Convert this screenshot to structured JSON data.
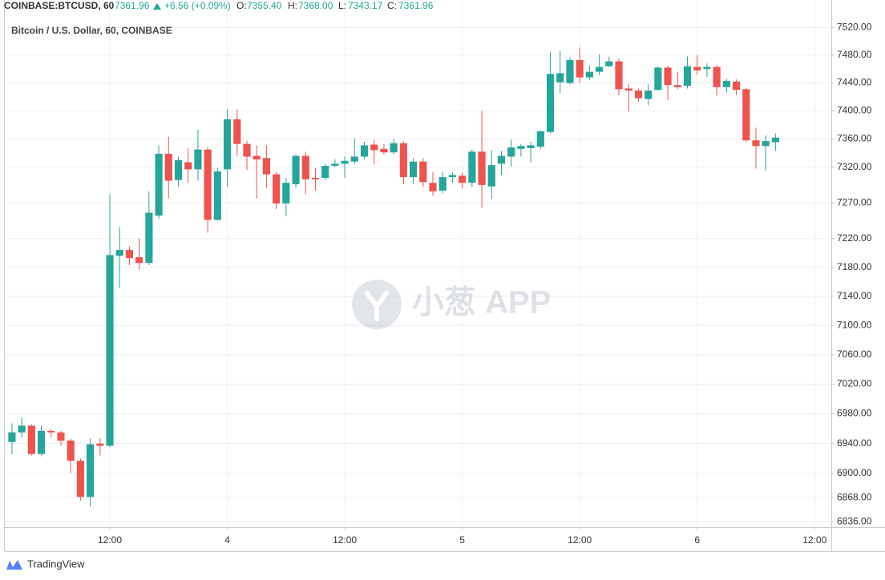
{
  "chart_data": {
    "type": "candlestick",
    "header": {
      "symbol": "COINBASE:BTCUSD, 60",
      "price": "7361.96",
      "change": "+6.56 (+0.09%)",
      "ohlc": [
        {
          "label": "O:",
          "value": "7355.40"
        },
        {
          "label": "H:",
          "value": "7368.00"
        },
        {
          "label": "L:",
          "value": "7343.17"
        },
        {
          "label": "C:",
          "value": "7361.96"
        }
      ]
    },
    "title": "Bitcoin / U.S. Dollar, 60, COINBASE",
    "watermark": "小葱 APP",
    "footer": "TradingView",
    "up_color": "#26a69a",
    "down_color": "#ef5350",
    "log_scale": true,
    "grid": true,
    "xlim": [
      1.27,
      85.7
    ],
    "xticks": [
      {
        "value": 12,
        "label": "12:00"
      },
      {
        "value": 24,
        "label": "4"
      },
      {
        "value": 36,
        "label": "12:00"
      },
      {
        "value": 48,
        "label": "5"
      },
      {
        "value": 60,
        "label": "12:00"
      },
      {
        "value": 72,
        "label": "6"
      },
      {
        "value": 84,
        "label": "12:00"
      }
    ],
    "ylim": [
      6829,
      7560
    ],
    "yticks": [
      {
        "value": 7520,
        "label": "7520.00"
      },
      {
        "value": 7480,
        "label": "7480.00"
      },
      {
        "value": 7440,
        "label": "7440.00"
      },
      {
        "value": 7400,
        "label": "7400.00"
      },
      {
        "value": 7360,
        "label": "7360.00"
      },
      {
        "value": 7320,
        "label": "7320.00"
      },
      {
        "value": 7270,
        "label": "7270.00"
      },
      {
        "value": 7220,
        "label": "7220.00"
      },
      {
        "value": 7180,
        "label": "7180.00"
      },
      {
        "value": 7140,
        "label": "7140.00"
      },
      {
        "value": 7100,
        "label": "7100.00"
      },
      {
        "value": 7060,
        "label": "7060.00"
      },
      {
        "value": 7020,
        "label": "7020.00"
      },
      {
        "value": 6980,
        "label": "6980.00"
      },
      {
        "value": 6940,
        "label": "6940.00"
      },
      {
        "value": 6900,
        "label": "6900.00"
      },
      {
        "value": 6868,
        "label": "6868.00"
      },
      {
        "value": 6836,
        "label": "6836.00"
      }
    ],
    "x": [
      2,
      3,
      4,
      5,
      6,
      7,
      8,
      9,
      10,
      11,
      12,
      13,
      14,
      15,
      16,
      17,
      18,
      19,
      20,
      21,
      22,
      23,
      24,
      25,
      26,
      27,
      28,
      29,
      30,
      31,
      32,
      33,
      34,
      35,
      36,
      37,
      38,
      39,
      40,
      41,
      42,
      43,
      44,
      45,
      46,
      47,
      48,
      49,
      50,
      51,
      52,
      53,
      54,
      55,
      56,
      57,
      58,
      59,
      60,
      61,
      62,
      63,
      64,
      65,
      66,
      67,
      68,
      69,
      70,
      71,
      72,
      73,
      74,
      75,
      76,
      77,
      78,
      79,
      80
    ],
    "open": [
      6942,
      6955,
      6964,
      6926,
      6957,
      6955,
      6944,
      6917,
      6869,
      6940,
      6937,
      7196,
      7204,
      7194,
      7186,
      7252,
      7339,
      7302,
      7327,
      7317,
      7345,
      7246,
      7317,
      7388,
      7353,
      7336,
      7333,
      7310,
      7269,
      7296,
      7336,
      7305,
      7305,
      7322,
      7325,
      7328,
      7335,
      7352,
      7346,
      7341,
      7354,
      7306,
      7328,
      7298,
      7287,
      7306,
      7308,
      7298,
      7342,
      7293,
      7325,
      7335,
      7346,
      7347,
      7349,
      7370,
      7441,
      7440,
      7473,
      7448,
      7456,
      7464,
      7471,
      7432,
      7429,
      7417,
      7430,
      7462,
      7437,
      7436,
      7463,
      7460,
      7463,
      7434,
      7442,
      7431,
      7358,
      7350,
      7355.4
    ],
    "high": [
      6967,
      6975,
      6966,
      6964,
      6959,
      6957,
      6946,
      6920,
      6947,
      6947,
      7282,
      7236,
      7209,
      7220,
      7286,
      7351,
      7363,
      7335,
      7347,
      7373,
      7348,
      7319,
      7402,
      7402,
      7357,
      7351,
      7351,
      7313,
      7305,
      7338,
      7342,
      7319,
      7325,
      7331,
      7335,
      7361,
      7356,
      7359,
      7353,
      7360,
      7357,
      7333,
      7333,
      7313,
      7313,
      7313,
      7312,
      7345,
      7400,
      7344,
      7343,
      7359,
      7353,
      7356,
      7372,
      7485,
      7486,
      7477,
      7491,
      7465,
      7481,
      7478,
      7475,
      7439,
      7432,
      7438,
      7464,
      7465,
      7456,
      7478,
      7480,
      7468,
      7466,
      7446,
      7445,
      7433,
      7376,
      7365,
      7368
    ],
    "low": [
      6926,
      6948,
      6924,
      6923,
      6948,
      6937,
      6901,
      6864,
      6856,
      6924,
      6935,
      7152,
      7183,
      7177,
      7183,
      7248,
      7276,
      7293,
      7298,
      7301,
      7228,
      7245,
      7293,
      7336,
      7316,
      7276,
      7291,
      7261,
      7251,
      7291,
      7282,
      7287,
      7302,
      7320,
      7305,
      7324,
      7331,
      7324,
      7338,
      7339,
      7296,
      7296,
      7292,
      7280,
      7283,
      7298,
      7290,
      7292,
      7263,
      7275,
      7309,
      7321,
      7335,
      7327,
      7346,
      7368,
      7425,
      7438,
      7440,
      7444,
      7451,
      7463,
      7422,
      7399,
      7413,
      7408,
      7429,
      7415,
      7431,
      7432,
      7452,
      7449,
      7422,
      7426,
      7423,
      7356,
      7318,
      7315,
      7343.17
    ],
    "close": [
      6955,
      6964,
      6926,
      6957,
      6955,
      6944,
      6917,
      6869,
      6939,
      6937,
      7197,
      7204,
      7193,
      7186,
      7256,
      7339,
      7301,
      7330,
      7317,
      7345,
      7246,
      7314,
      7388,
      7353,
      7335,
      7331,
      7310,
      7269,
      7298,
      7336,
      7303,
      7303,
      7322,
      7325,
      7329,
      7335,
      7351,
      7344,
      7341,
      7354,
      7306,
      7328,
      7299,
      7286,
      7306,
      7309,
      7298,
      7342,
      7295,
      7323,
      7336,
      7348,
      7350,
      7351,
      7371,
      7453,
      7454,
      7473,
      7448,
      7456,
      7463,
      7471,
      7431,
      7429,
      7418,
      7429,
      7462,
      7437,
      7434,
      7464,
      7458,
      7463,
      7434,
      7443,
      7430,
      7358,
      7350,
      7357,
      7361.96
    ]
  }
}
